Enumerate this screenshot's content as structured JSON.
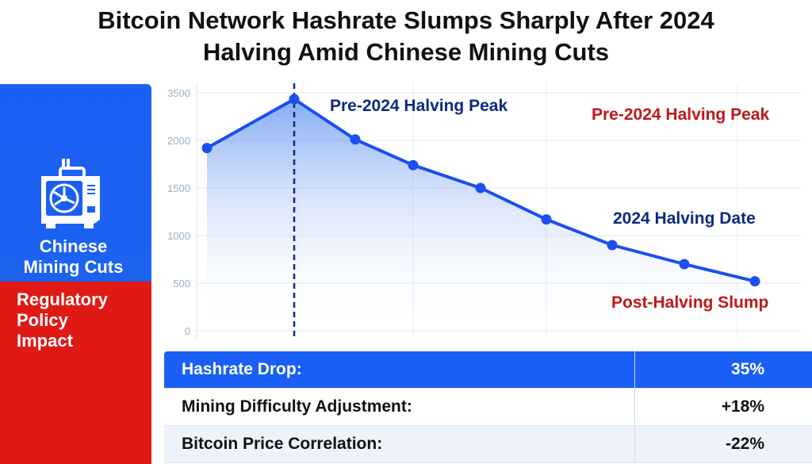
{
  "title_line1": "Bitcoin Network Hashrate Slumps Sharply After 2024",
  "title_line2": "Halving Amid Chinese Mining Cuts",
  "sidebar": {
    "icon": "mining-rig-icon",
    "blue_label_1": "Chinese",
    "blue_label_2": "Mining Cuts",
    "red_label_1": "Regulatory",
    "red_label_2": "Policy",
    "red_label_3": "Impact",
    "blue_color": "#1a5ff5",
    "red_color": "#df1a15"
  },
  "chart_data": {
    "type": "line",
    "title": "",
    "xlabel": "",
    "ylabel": "",
    "y_ticks": [
      0,
      500,
      1000,
      1500,
      2000,
      3500
    ],
    "ylim": [
      0,
      3500
    ],
    "grid": true,
    "x": [
      0,
      1,
      2,
      3,
      4,
      5,
      6,
      7,
      8
    ],
    "series": [
      {
        "name": "Hashrate",
        "values": [
          1920,
          3300,
          2030,
          1740,
          1500,
          1170,
          900,
          700,
          520
        ],
        "color": "#1a4ff0"
      }
    ],
    "halving_index": 1,
    "annotations": {
      "peak_blue": "Pre-2024 Halving Peak",
      "peak_red": "Pre-2024 Halving Peak",
      "halving_date": "2024 Halving Date",
      "slump": "Post-Halving Slump"
    }
  },
  "table": [
    {
      "label": "Hashrate Drop:",
      "value": "35%"
    },
    {
      "label": "Mining Difficulty Adjustment:",
      "value": "+18%"
    },
    {
      "label": "Bitcoin Price Correlation:",
      "value": "-22%"
    }
  ]
}
